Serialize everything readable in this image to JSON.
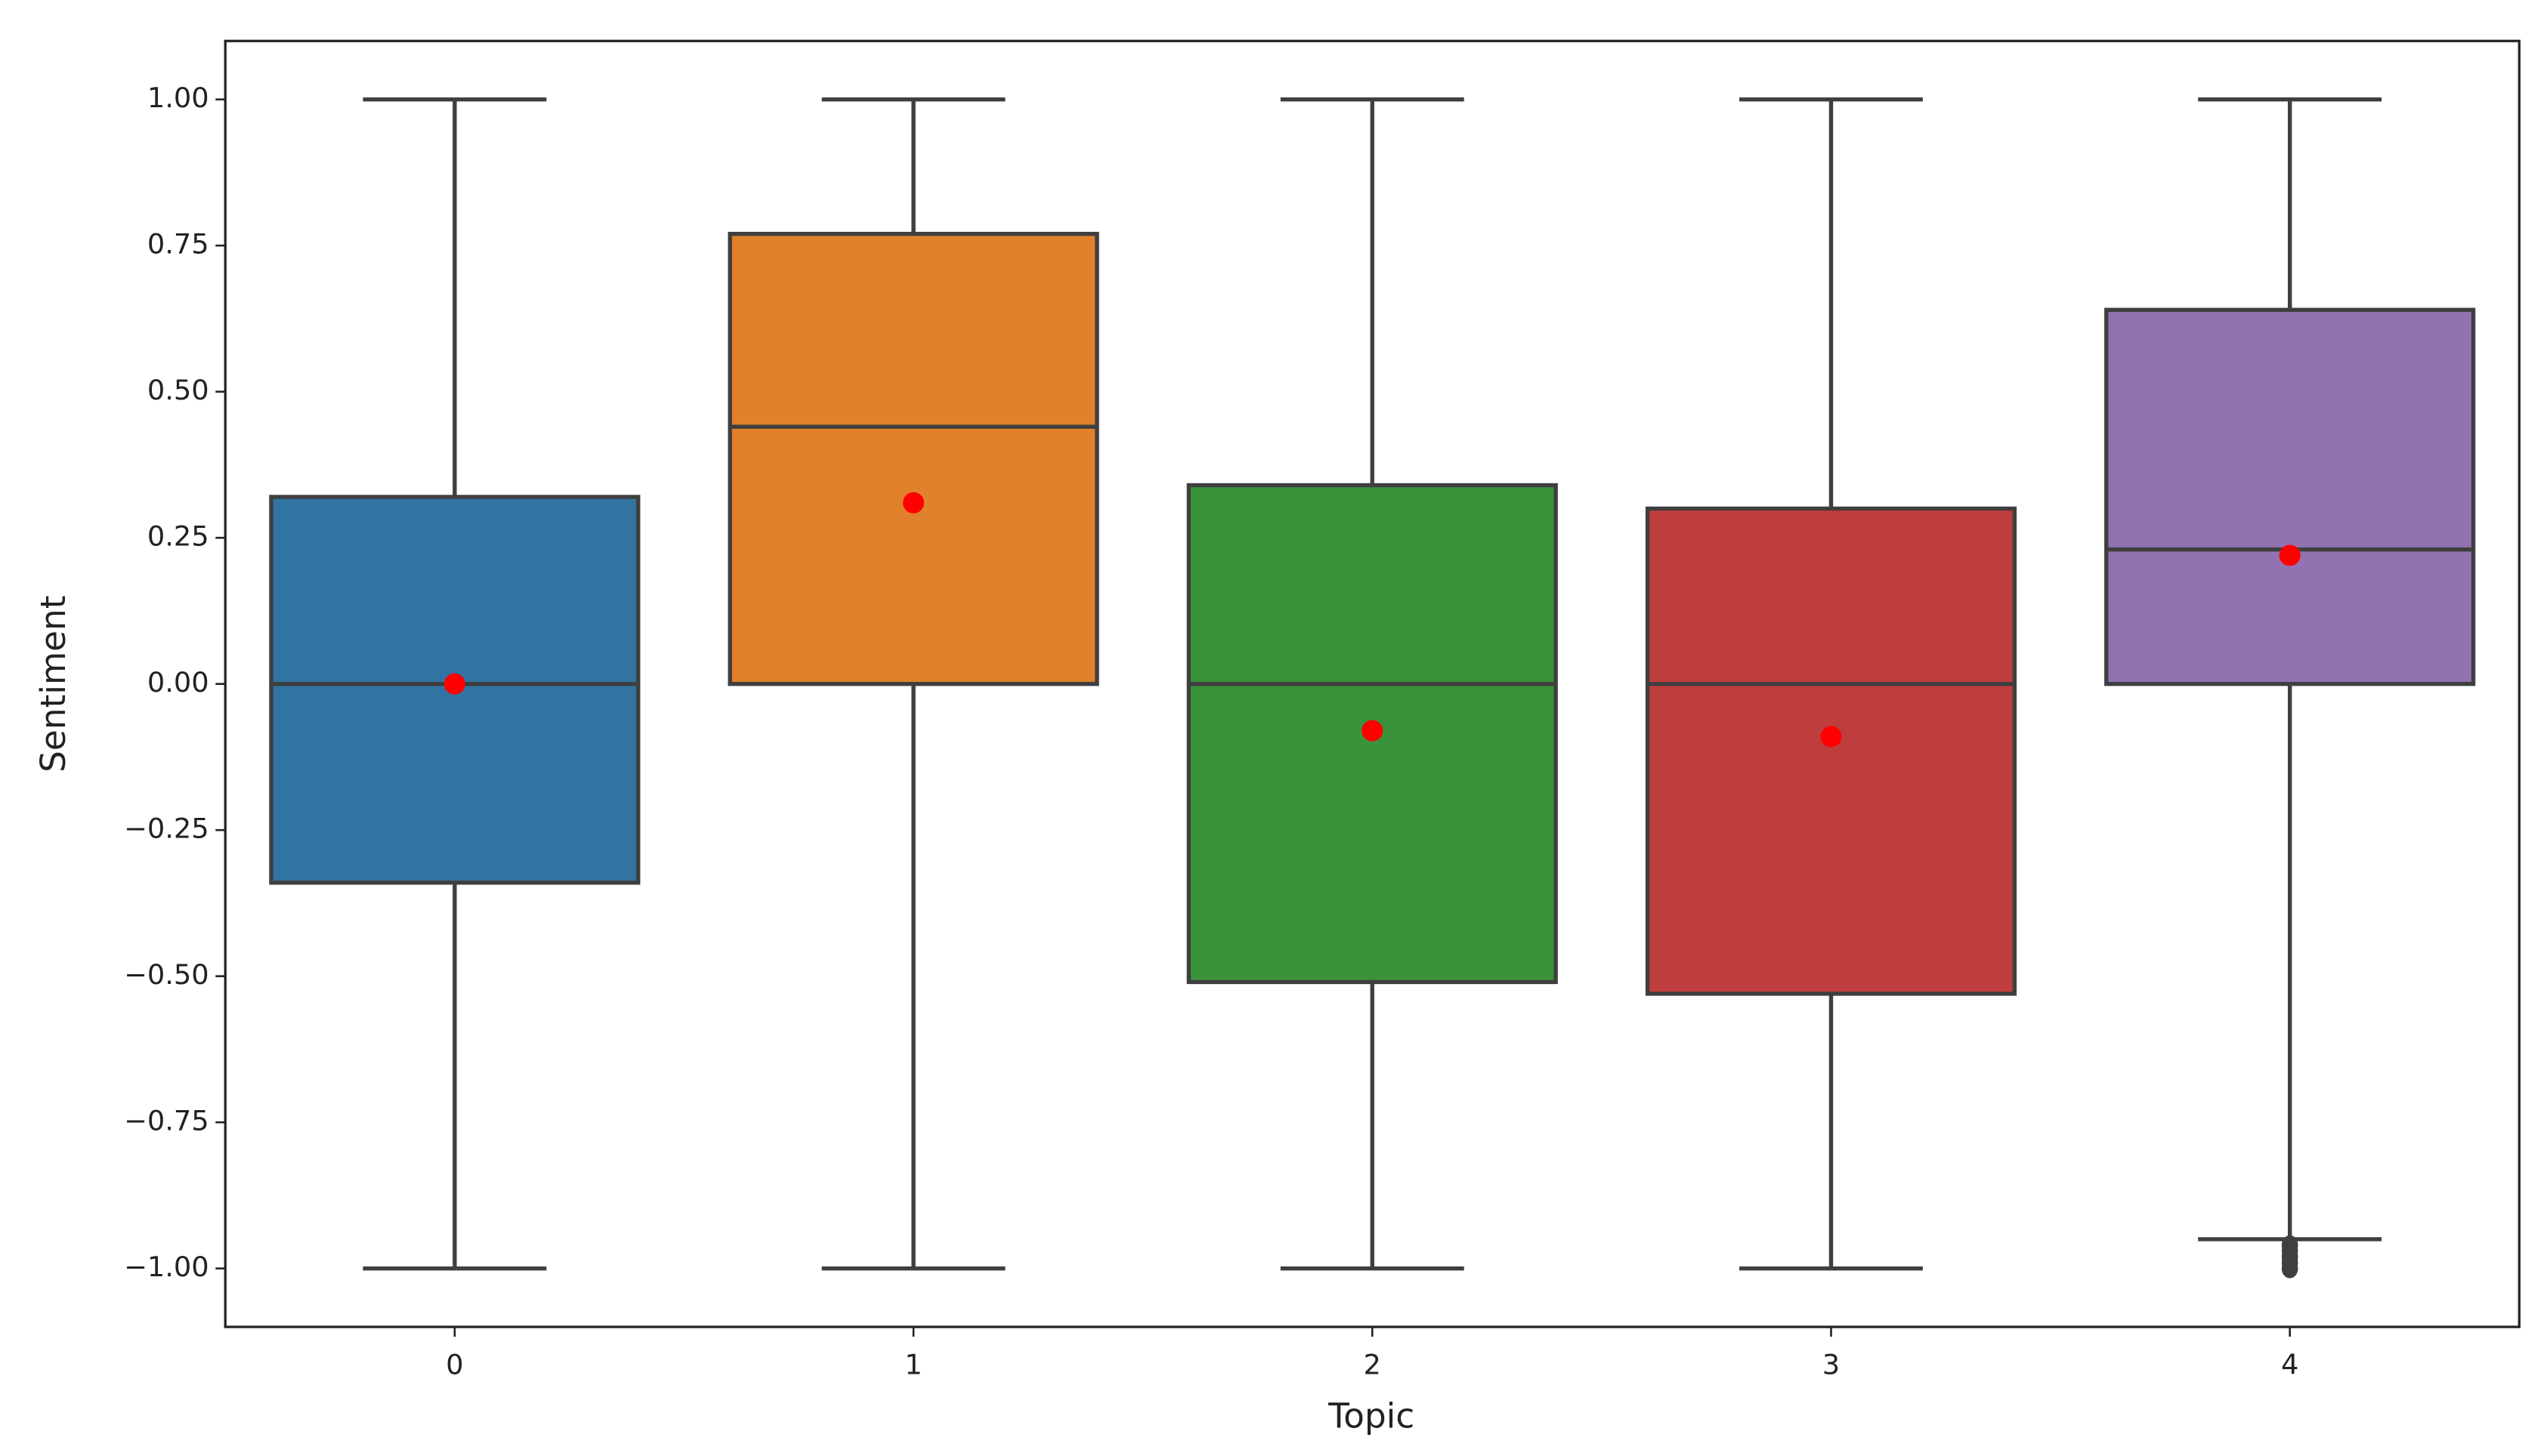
{
  "chart_data": {
    "type": "box",
    "x_label": "Topic",
    "y_label": "Sentiment",
    "categories": [
      "0",
      "1",
      "2",
      "3",
      "4"
    ],
    "boxes": [
      {
        "whislo": -1.0,
        "q1": -0.34,
        "med": 0.0,
        "q3": 0.32,
        "whishi": 1.0,
        "mean": 0.0,
        "fliers": [],
        "color": "#3274a1"
      },
      {
        "whislo": -1.0,
        "q1": 0.0,
        "med": 0.44,
        "q3": 0.77,
        "whishi": 1.0,
        "mean": 0.31,
        "fliers": [],
        "color": "#e1812c"
      },
      {
        "whislo": -1.0,
        "q1": -0.51,
        "med": 0.0,
        "q3": 0.34,
        "whishi": 1.0,
        "mean": -0.08,
        "fliers": [],
        "color": "#3a923a"
      },
      {
        "whislo": -1.0,
        "q1": -0.53,
        "med": 0.0,
        "q3": 0.3,
        "whishi": 1.0,
        "mean": -0.09,
        "fliers": [],
        "color": "#c03d3e"
      },
      {
        "whislo": -0.95,
        "q1": 0.0,
        "med": 0.23,
        "q3": 0.64,
        "whishi": 1.0,
        "mean": 0.22,
        "fliers": [
          -0.96,
          -0.97,
          -0.98,
          -0.99,
          -1.0
        ],
        "color": "#9372b2"
      }
    ],
    "mean_color": "#ff0000",
    "ylim": [
      -1.1,
      1.1
    ],
    "yticks": [
      {
        "value": -1,
        "label": "−1.00"
      },
      {
        "value": -0.75,
        "label": "−0.75"
      },
      {
        "value": -0.5,
        "label": "−0.50"
      },
      {
        "value": -0.25,
        "label": "−0.25"
      },
      {
        "value": 0,
        "label": "0.00"
      },
      {
        "value": 0.25,
        "label": "0.25"
      },
      {
        "value": 0.5,
        "label": "0.50"
      },
      {
        "value": 0.75,
        "label": "0.75"
      },
      {
        "value": 1,
        "label": "1.00"
      }
    ],
    "grid": false
  }
}
